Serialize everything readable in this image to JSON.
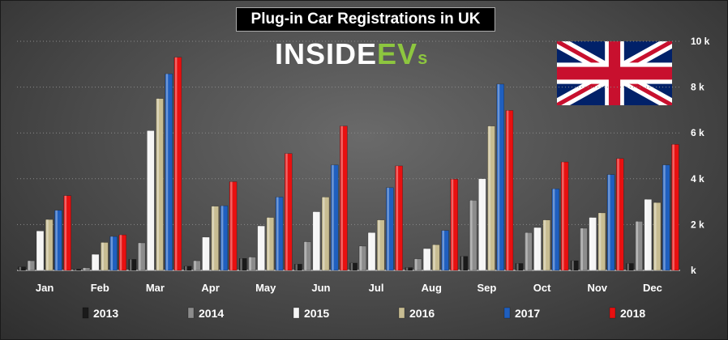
{
  "chart_data": {
    "type": "bar",
    "title": "Plug-in Car Registrations in UK",
    "xlabel": "",
    "ylabel": "",
    "ylim": [
      0,
      10000
    ],
    "yticks": [
      0,
      2000,
      4000,
      6000,
      8000,
      10000
    ],
    "ytick_labels": [
      "k",
      "2 k",
      "4 k",
      "6 k",
      "8 k",
      "10 k"
    ],
    "legend_position": "bottom",
    "categories": [
      "Jan",
      "Feb",
      "Mar",
      "Apr",
      "May",
      "Jun",
      "Jul",
      "Aug",
      "Sep",
      "Oct",
      "Nov",
      "Dec"
    ],
    "series": [
      {
        "name": "2013",
        "color": "#1a1a1a",
        "values": [
          150,
          50,
          480,
          180,
          520,
          270,
          320,
          120,
          610,
          300,
          420,
          300
        ]
      },
      {
        "name": "2014",
        "color": "#8c8c8c",
        "values": [
          420,
          110,
          1200,
          420,
          580,
          1250,
          1060,
          500,
          3060,
          1650,
          1840,
          2140
        ]
      },
      {
        "name": "2015",
        "color": "#f5f5f5",
        "values": [
          1720,
          700,
          6100,
          1450,
          1940,
          2560,
          1650,
          950,
          4000,
          1870,
          2310,
          3100
        ]
      },
      {
        "name": "2016",
        "color": "#c8bd92",
        "values": [
          2220,
          1220,
          7500,
          2800,
          2310,
          3200,
          2200,
          1120,
          6300,
          2200,
          2510,
          2960
        ]
      },
      {
        "name": "2017",
        "color": "#1f5fbf",
        "values": [
          2620,
          1480,
          8580,
          2820,
          3200,
          4600,
          3610,
          1740,
          8130,
          3560,
          4180,
          4600
        ]
      },
      {
        "name": "2018",
        "color": "#e81010",
        "values": [
          3260,
          1550,
          9300,
          3870,
          5100,
          6300,
          4560,
          3980,
          6980,
          4730,
          4880,
          5500
        ]
      }
    ]
  },
  "branding": {
    "logo_white": "INSIDE",
    "logo_green": "EV",
    "logo_small": "s",
    "flag": "uk-flag"
  }
}
